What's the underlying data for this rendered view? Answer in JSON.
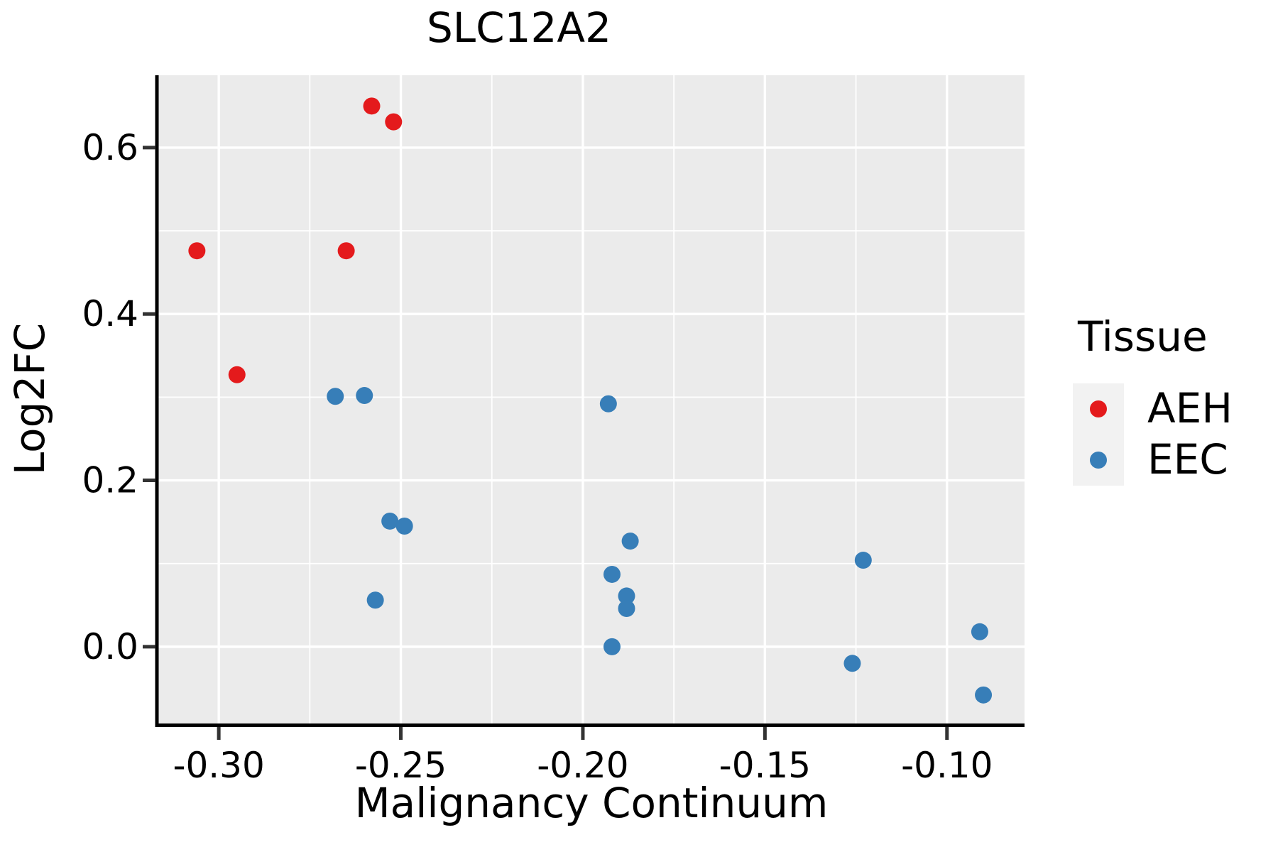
{
  "title": "SLC12A2",
  "colors": {
    "aeh": "#E41A1C",
    "eec": "#377EB8",
    "panel_background": "#EBEBEB",
    "gridline": "#FFFFFF",
    "legend_key_background": "#F2F2F2",
    "axis_text": "#000000",
    "spine": "#000000",
    "tick_mark": "#333333"
  },
  "legend": {
    "title": "Tissue",
    "items": [
      {
        "label": "AEH",
        "color": "#E41A1C"
      },
      {
        "label": "EEC",
        "color": "#377EB8"
      }
    ]
  },
  "chart_data": {
    "type": "scatter",
    "title": "SLC12A2",
    "xlabel": "Malignancy Continuum",
    "ylabel": "Log2FC",
    "legend_title": "Tissue",
    "legend_position": "right",
    "grid": true,
    "xlim": [
      -0.3166,
      -0.0787
    ],
    "ylim": [
      -0.094,
      0.687
    ],
    "x_ticks": [
      -0.3,
      -0.25,
      -0.2,
      -0.15,
      -0.1
    ],
    "x_tick_labels": [
      "-0.30",
      "-0.25",
      "-0.20",
      "-0.15",
      "-0.10"
    ],
    "x_minor_ticks": [
      -0.275,
      -0.225,
      -0.175,
      -0.125
    ],
    "y_ticks": [
      0.0,
      0.2,
      0.4,
      0.6
    ],
    "y_tick_labels": [
      "0.0",
      "0.2",
      "0.4",
      "0.6"
    ],
    "y_minor_ticks": [
      0.1,
      0.3,
      0.5
    ],
    "series": [
      {
        "name": "AEH",
        "color": "#E41A1C",
        "points": [
          [
            -0.306,
            0.476
          ],
          [
            -0.295,
            0.327
          ],
          [
            -0.265,
            0.476
          ],
          [
            -0.258,
            0.65
          ],
          [
            -0.252,
            0.631
          ]
        ]
      },
      {
        "name": "EEC",
        "color": "#377EB8",
        "points": [
          [
            -0.268,
            0.301
          ],
          [
            -0.26,
            0.302
          ],
          [
            -0.253,
            0.151
          ],
          [
            -0.249,
            0.145
          ],
          [
            -0.257,
            0.056
          ],
          [
            -0.193,
            0.292
          ],
          [
            -0.187,
            0.127
          ],
          [
            -0.192,
            0.087
          ],
          [
            -0.188,
            0.061
          ],
          [
            -0.188,
            0.046
          ],
          [
            -0.192,
            0.0
          ],
          [
            -0.123,
            0.104
          ],
          [
            -0.126,
            -0.02
          ],
          [
            -0.091,
            0.018
          ],
          [
            -0.09,
            -0.058
          ]
        ]
      }
    ]
  }
}
